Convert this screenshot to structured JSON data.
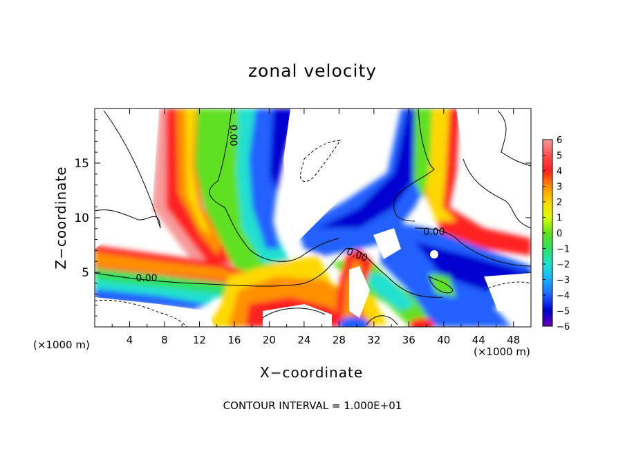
{
  "chart_data": {
    "type": "heatmap",
    "title": "zonal velocity",
    "xlabel": "X−coordinate",
    "ylabel": "Z−coordinate",
    "x_unit_label": "(×1000 m)",
    "xlim": [
      0,
      50
    ],
    "ylim": [
      0,
      20
    ],
    "x_ticks": [
      4,
      8,
      12,
      16,
      20,
      24,
      28,
      32,
      36,
      40,
      44,
      48
    ],
    "y_ticks": [
      5,
      10,
      15
    ],
    "colorbar": {
      "levels": [
        "6",
        "5",
        "4",
        "3",
        "2",
        "1",
        "0",
        "−1",
        "−2",
        "−3",
        "−4",
        "−5",
        "−6"
      ],
      "colors": [
        "#f79a9a",
        "#ff5050",
        "#ff2020",
        "#ff9000",
        "#ffd800",
        "#d8ff00",
        "#60e020",
        "#30e060",
        "#20e0d0",
        "#18b0ff",
        "#2060ff",
        "#0000d0",
        "#6a00a8"
      ]
    },
    "contour_labels": [
      "0.00",
      "0.00",
      "0.00",
      "0.00"
    ],
    "contour_interval_text": "CONTOUR INTERVAL = 1.000E+01",
    "field_features": [
      {
        "kind": "positive_jet",
        "x": 11,
        "z_top": 20,
        "z_bottom": 5
      },
      {
        "kind": "negative_column",
        "x": 21,
        "z_top": 20,
        "z_bottom": 8
      },
      {
        "kind": "positive_layer",
        "x_start": 0,
        "x_end": 20,
        "z": 5
      },
      {
        "kind": "negative_column",
        "x": 36,
        "z_top": 20,
        "z_bottom": 5
      },
      {
        "kind": "positive_column",
        "x": 40,
        "z_top": 20,
        "z_bottom": 8
      },
      {
        "kind": "positive_tongue",
        "x": 29,
        "z_top": 6,
        "z_bottom": 0
      }
    ]
  }
}
